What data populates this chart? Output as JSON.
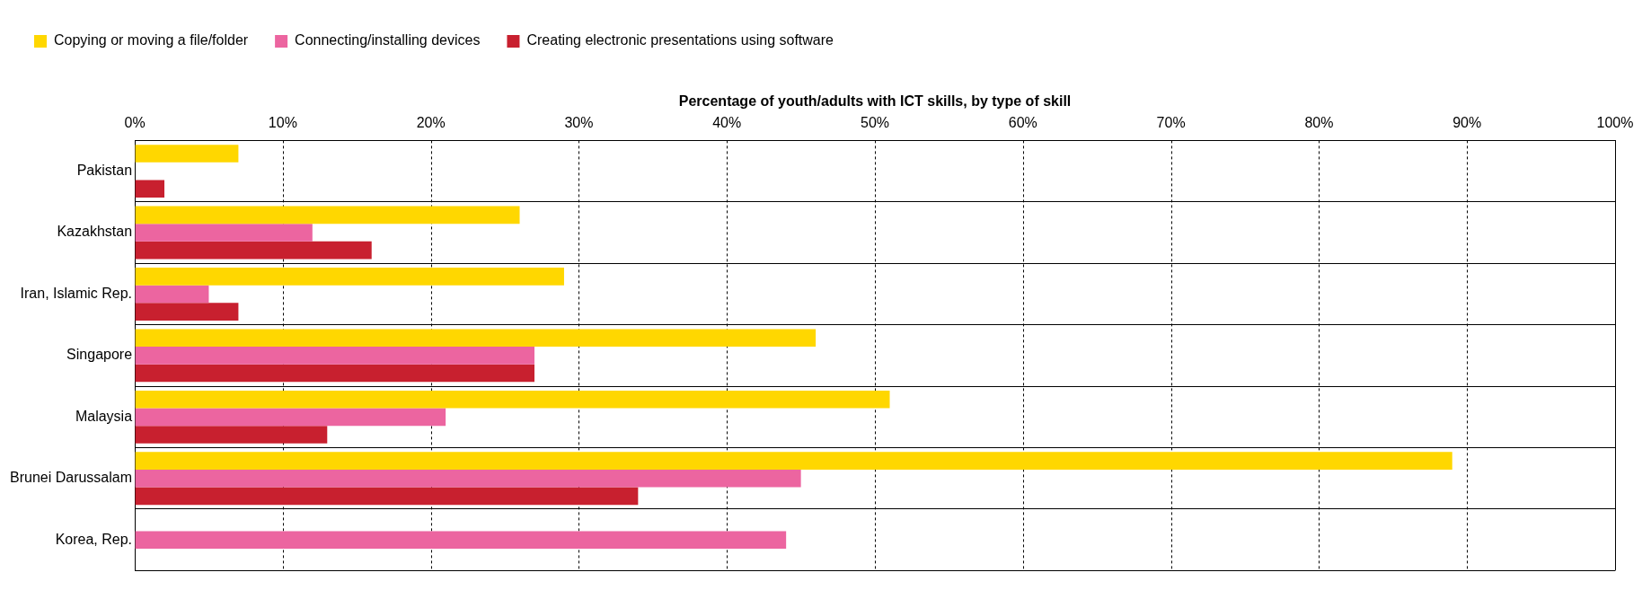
{
  "chart_data": {
    "type": "bar",
    "orientation": "horizontal",
    "xlabel": "Percentage of youth/adults with ICT skills, by type of skill",
    "categories": [
      "Pakistan",
      "Kazakhstan",
      "Iran, Islamic Rep.",
      "Singapore",
      "Malaysia",
      "Brunei Darussalam",
      "Korea, Rep."
    ],
    "series": [
      {
        "name": "Copying or moving a file/folder",
        "color": "#ffd700",
        "values": [
          7,
          26,
          29,
          46,
          51,
          89,
          null
        ]
      },
      {
        "name": "Connecting/installing devices",
        "color": "#ec65a0",
        "values": [
          null,
          12,
          5,
          27,
          21,
          45,
          44
        ]
      },
      {
        "name": "Creating electronic presentations using software",
        "color": "#c8202f",
        "values": [
          2,
          16,
          7,
          27,
          13,
          34,
          null
        ]
      }
    ],
    "xlim": [
      0,
      100
    ],
    "xticks": [
      {
        "value": 0,
        "label": "0%"
      },
      {
        "value": 10,
        "label": "10%"
      },
      {
        "value": 20,
        "label": "20%"
      },
      {
        "value": 30,
        "label": "30%"
      },
      {
        "value": 40,
        "label": "40%"
      },
      {
        "value": 50,
        "label": "50%"
      },
      {
        "value": 60,
        "label": "60%"
      },
      {
        "value": 70,
        "label": "70%"
      },
      {
        "value": 80,
        "label": "80%"
      },
      {
        "value": 90,
        "label": "90%"
      },
      {
        "value": 100,
        "label": "100%"
      }
    ],
    "grid": true,
    "legend": "top left"
  }
}
